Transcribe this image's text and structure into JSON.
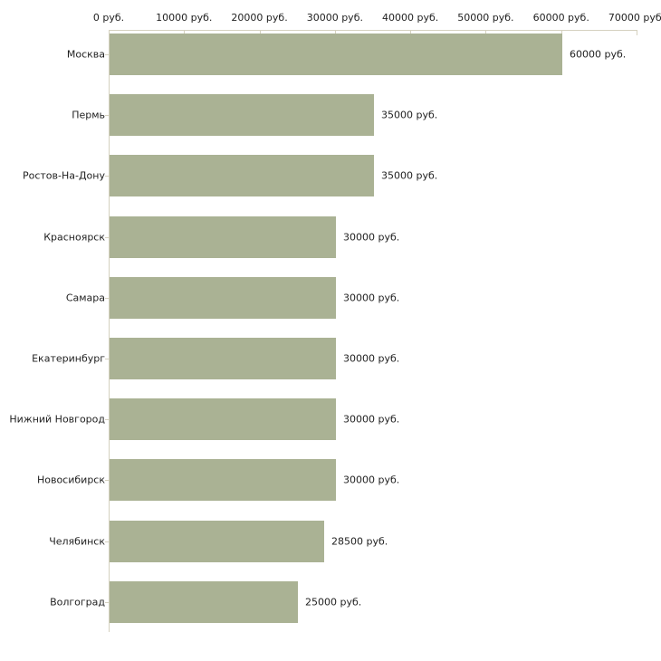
{
  "chart_data": {
    "type": "bar",
    "orientation": "horizontal",
    "title": "",
    "xlabel": "",
    "ylabel": "",
    "xlim": [
      0,
      70000
    ],
    "grid": false,
    "legend": null,
    "bar_color": "#aab294",
    "axis_color": "#d5d1bf",
    "text_color": "#1f1f1f",
    "x_ticks": [
      0,
      10000,
      20000,
      30000,
      40000,
      50000,
      60000,
      70000
    ],
    "x_tick_labels": [
      "0 руб.",
      "10000 руб.",
      "20000 руб.",
      "30000 руб.",
      "40000 руб.",
      "50000 руб.",
      "60000 руб.",
      "70000 руб."
    ],
    "categories": [
      "Москва",
      "Пермь",
      "Ростов-На-Дону",
      "Красноярск",
      "Самара",
      "Екатеринбург",
      "Нижний Новгород",
      "Новосибирск",
      "Челябинск",
      "Волгоград"
    ],
    "values": [
      60000,
      35000,
      35000,
      30000,
      30000,
      30000,
      30000,
      30000,
      28500,
      25000
    ],
    "value_labels": [
      "60000 руб.",
      "35000 руб.",
      "35000 руб.",
      "30000 руб.",
      "30000 руб.",
      "30000 руб.",
      "30000 руб.",
      "30000 руб.",
      "28500 руб.",
      "25000 руб."
    ]
  }
}
